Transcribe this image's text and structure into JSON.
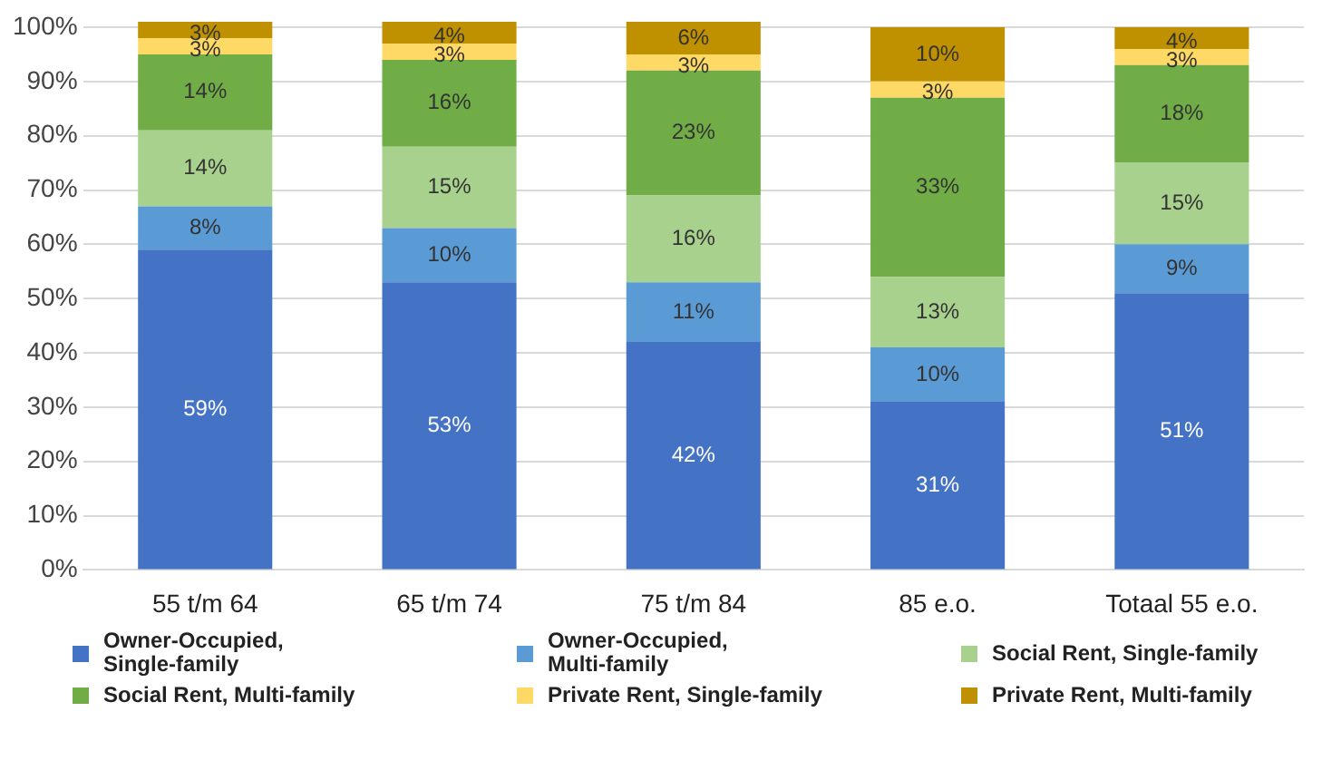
{
  "chart_data": {
    "type": "bar",
    "stacked": true,
    "categories": [
      "55 t/m 64",
      "65 t/m 74",
      "75 t/m 84",
      "85 e.o.",
      "Totaal 55 e.o."
    ],
    "series": [
      {
        "name": "Owner-Occupied, Single-family",
        "color": "#4472c4",
        "values": [
          59,
          53,
          42,
          31,
          51
        ],
        "value_labels": [
          "59%",
          "53%",
          "42%",
          "31%",
          "51%"
        ]
      },
      {
        "name": "Owner-Occupied, Multi-family",
        "color": "#5b9bd5",
        "values": [
          8,
          10,
          11,
          10,
          9
        ],
        "value_labels": [
          "8%",
          "10%",
          "11%",
          "10%",
          "9%"
        ]
      },
      {
        "name": "Social Rent, Single-family",
        "color": "#a9d18e",
        "values": [
          14,
          15,
          16,
          13,
          15
        ],
        "value_labels": [
          "14%",
          "15%",
          "16%",
          "13%",
          "15%"
        ]
      },
      {
        "name": "Social Rent, Multi-family",
        "color": "#70ad47",
        "values": [
          14,
          16,
          23,
          33,
          18
        ],
        "value_labels": [
          "14%",
          "16%",
          "23%",
          "33%",
          "18%"
        ]
      },
      {
        "name": "Private Rent, Single-family",
        "color": "#ffd966",
        "values": [
          3,
          3,
          3,
          3,
          3
        ],
        "value_labels": [
          "3%",
          "3%",
          "3%",
          "3%",
          "3%"
        ]
      },
      {
        "name": "Private Rent, Multi-family",
        "color": "#bf9000",
        "values": [
          3,
          4,
          6,
          10,
          4
        ],
        "value_labels": [
          "3%",
          "4%",
          "6%",
          "10%",
          "4%"
        ]
      }
    ],
    "ylim": [
      0,
      101
    ],
    "yticks": [
      {
        "value": 0,
        "label": "0%"
      },
      {
        "value": 10,
        "label": "10%"
      },
      {
        "value": 20,
        "label": "20%"
      },
      {
        "value": 30,
        "label": "30%"
      },
      {
        "value": 40,
        "label": "40%"
      },
      {
        "value": 50,
        "label": "50%"
      },
      {
        "value": 60,
        "label": "60%"
      },
      {
        "value": 70,
        "label": "70%"
      },
      {
        "value": 80,
        "label": "80%"
      },
      {
        "value": 90,
        "label": "90%"
      },
      {
        "value": 100,
        "label": "100%"
      }
    ],
    "grid": "y",
    "legend": "bottom"
  }
}
